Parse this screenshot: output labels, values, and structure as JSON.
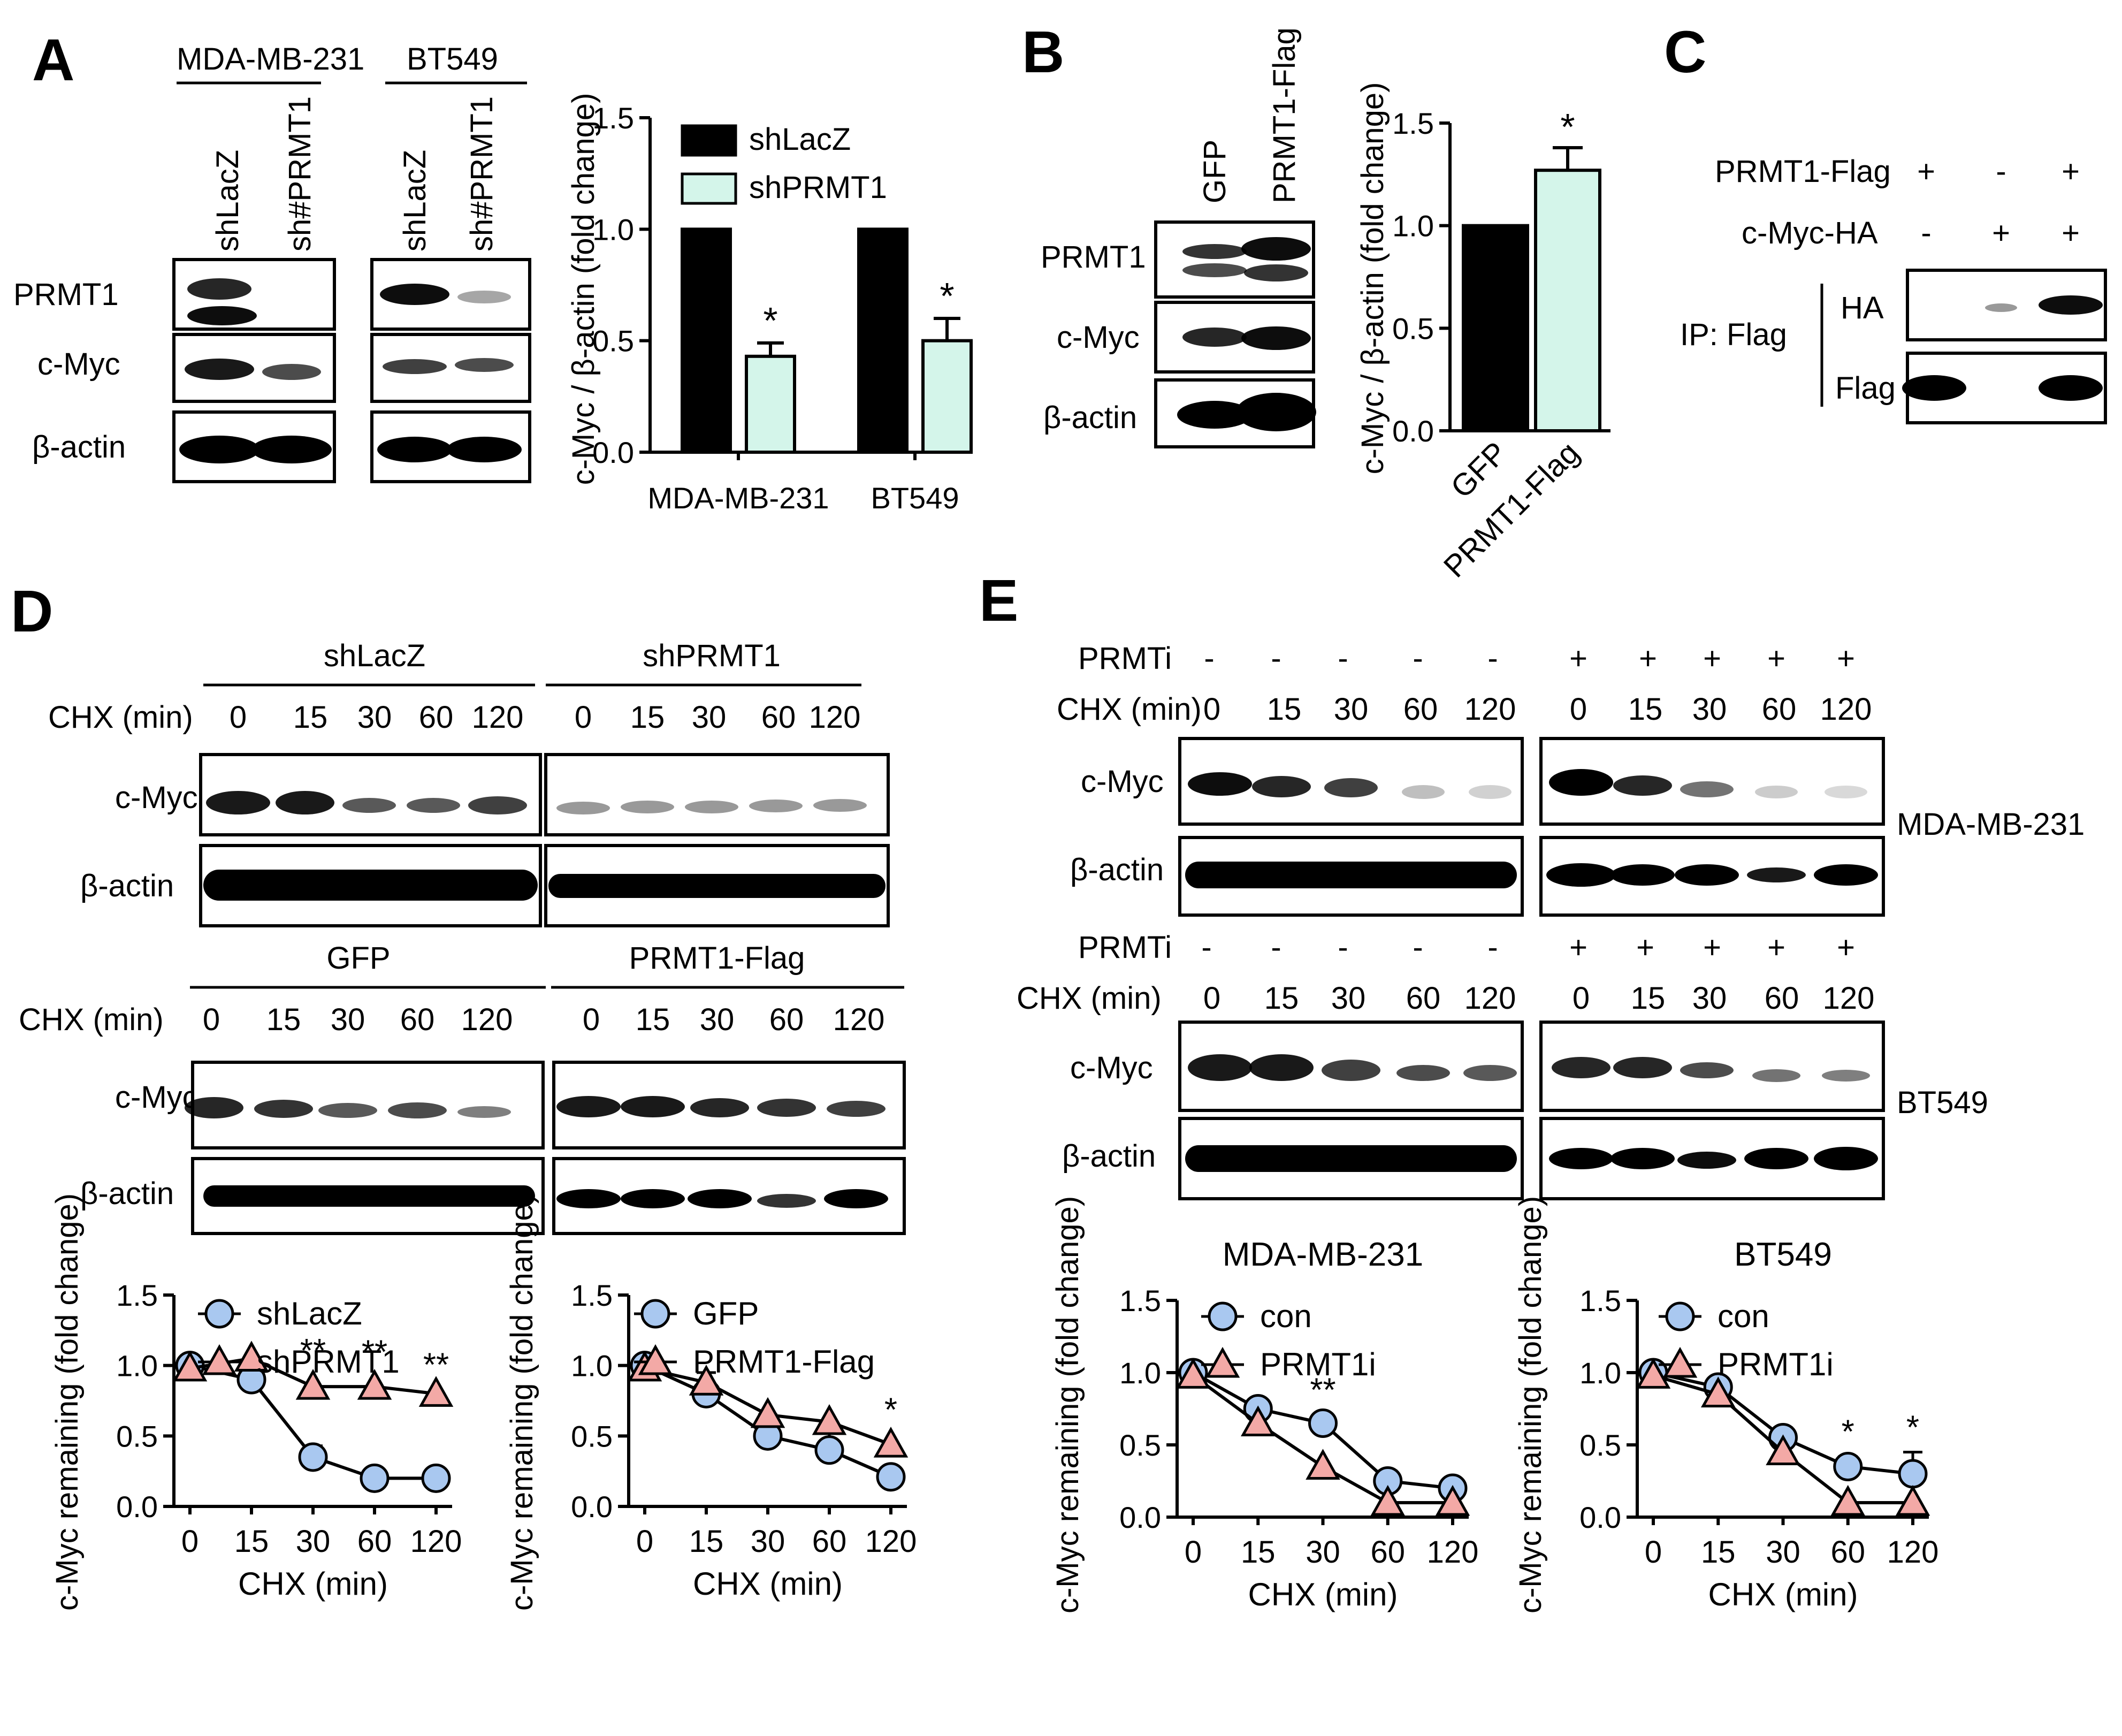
{
  "panels": {
    "A": {
      "letter": "A",
      "cell_lines": [
        "MDA-MB-231",
        "BT549"
      ],
      "lanes": [
        "shLacZ",
        "sh#PRMT1"
      ],
      "blot_rows": [
        "PRMT1",
        "c-Myc",
        "β-actin"
      ]
    },
    "B": {
      "letter": "B",
      "lanes": [
        "GFP",
        "PRMT1-Flag"
      ],
      "blot_rows": [
        "PRMT1",
        "c-Myc",
        "β-actin"
      ]
    },
    "C": {
      "letter": "C",
      "conditions": [
        {
          "label": "PRMT1-Flag",
          "values": [
            "+",
            "-",
            "+"
          ]
        },
        {
          "label": "c-Myc-HA",
          "values": [
            "-",
            "+",
            "+"
          ]
        }
      ],
      "ip_label": "IP: Flag",
      "blot_rows": [
        "HA",
        "Flag"
      ]
    },
    "D": {
      "letter": "D",
      "groups_top": [
        "shLacZ",
        "shPRMT1"
      ],
      "groups_bottom": [
        "GFP",
        "PRMT1-Flag"
      ],
      "chx_label": "CHX (min)",
      "timepoints": [
        "0",
        "15",
        "30",
        "60",
        "120"
      ],
      "blot_rows": [
        "c-Myc",
        "β-actin"
      ]
    },
    "E": {
      "letter": "E",
      "treatment_label": "PRMTi",
      "treatment_values": [
        "-",
        "-",
        "-",
        "-",
        "-",
        "+",
        "+",
        "+",
        "+",
        "+"
      ],
      "chx_label": "CHX (min)",
      "timepoints": [
        "0",
        "15",
        "30",
        "60",
        "120"
      ],
      "blot_rows": [
        "c-Myc",
        "β-actin"
      ],
      "cell_lines": [
        "MDA-MB-231",
        "BT549"
      ]
    }
  },
  "chart_data": [
    {
      "id": "A-bar",
      "type": "bar",
      "categories": [
        "MDA-MB-231",
        "BT549"
      ],
      "series": [
        {
          "name": "shLacZ",
          "values": [
            1.0,
            1.0
          ],
          "errors": [
            0,
            0
          ],
          "color": "#000000"
        },
        {
          "name": "shPRMT1",
          "values": [
            0.43,
            0.5
          ],
          "errors": [
            0.06,
            0.1
          ],
          "color": "#d4f5ea"
        }
      ],
      "significance": [
        "*",
        "*"
      ],
      "ylabel": "c-Myc / β-actin (fold change)",
      "ylim": [
        0,
        1.5
      ],
      "yticks": [
        "0.0",
        "0.5",
        "1.0",
        "1.5"
      ],
      "legend": "top-left"
    },
    {
      "id": "B-bar",
      "type": "bar",
      "categories": [
        "GFP",
        "PRMT1-Flag"
      ],
      "values": [
        1.0,
        1.27
      ],
      "errors": [
        0,
        0.11
      ],
      "colors": [
        "#000000",
        "#d4f5ea"
      ],
      "significance": [
        "",
        "*"
      ],
      "ylabel": "c-Myc / β-actin (fold change)",
      "ylim": [
        0,
        1.5
      ],
      "yticks": [
        "0.0",
        "0.5",
        "1.0",
        "1.5"
      ]
    },
    {
      "id": "D-line-1",
      "type": "line",
      "x": [
        "0",
        "15",
        "30",
        "60",
        "120"
      ],
      "series": [
        {
          "name": "shLacZ",
          "marker": "circle",
          "values": [
            1.0,
            0.9,
            0.35,
            0.2,
            0.2
          ],
          "errors": [
            0.03,
            0.03,
            0.08,
            0.03,
            0.03
          ]
        },
        {
          "name": "shPRMT1",
          "marker": "triangle",
          "values": [
            0.98,
            1.05,
            0.85,
            0.85,
            0.8
          ],
          "errors": [
            0.03,
            0.08,
            0.08,
            0.07,
            0.03
          ]
        }
      ],
      "significance": [
        "",
        "",
        "**",
        "**",
        "**"
      ],
      "xlabel": "CHX  (min)",
      "ylabel": "c-Myc remaining (fold change)",
      "ylim": [
        0,
        1.5
      ],
      "yticks": [
        "0.0",
        "0.5",
        "1.0",
        "1.5"
      ],
      "legend": "top-left"
    },
    {
      "id": "D-line-2",
      "type": "line",
      "x": [
        "0",
        "15",
        "30",
        "60",
        "120"
      ],
      "series": [
        {
          "name": "GFP",
          "marker": "circle",
          "values": [
            1.0,
            0.8,
            0.5,
            0.4,
            0.21
          ],
          "errors": [
            0.03,
            0.15,
            0.15,
            0.15,
            0.03
          ]
        },
        {
          "name": "PRMT1-Flag",
          "marker": "triangle",
          "values": [
            0.98,
            0.88,
            0.65,
            0.6,
            0.44
          ],
          "errors": [
            0.03,
            0.05,
            0.08,
            0.07,
            0.07
          ]
        }
      ],
      "significance": [
        "",
        "",
        "",
        "",
        "*"
      ],
      "xlabel": "CHX  (min)",
      "ylabel": "c-Myc remaining (fold change)",
      "ylim": [
        0,
        1.5
      ],
      "yticks": [
        "0.0",
        "0.5",
        "1.0",
        "1.5"
      ],
      "legend": "top-left"
    },
    {
      "id": "E-line-1",
      "type": "line",
      "title": "MDA-MB-231",
      "x": [
        "0",
        "15",
        "30",
        "60",
        "120"
      ],
      "series": [
        {
          "name": "con",
          "marker": "circle",
          "values": [
            1.0,
            0.75,
            0.65,
            0.25,
            0.2
          ],
          "errors": [
            0.03,
            0.06,
            0.06,
            0.07,
            0.03
          ]
        },
        {
          "name": "PRMT1i",
          "marker": "triangle",
          "values": [
            0.98,
            0.65,
            0.35,
            0.1,
            0.1
          ],
          "errors": [
            0.03,
            0.08,
            0.08,
            0.05,
            0.05
          ]
        }
      ],
      "significance": [
        "",
        "",
        "**",
        "",
        ""
      ],
      "xlabel": "CHX  (min)",
      "ylabel": "c-Myc remaining (fold change)",
      "ylim": [
        0,
        1.5
      ],
      "yticks": [
        "0.0",
        "0.5",
        "1.0",
        "1.5"
      ],
      "legend": "top-left"
    },
    {
      "id": "E-line-2",
      "type": "line",
      "title": "BT549",
      "x": [
        "0",
        "15",
        "30",
        "60",
        "120"
      ],
      "series": [
        {
          "name": "con",
          "marker": "circle",
          "values": [
            1.0,
            0.9,
            0.55,
            0.35,
            0.3
          ],
          "errors": [
            0.03,
            0.03,
            0.07,
            0.07,
            0.15
          ]
        },
        {
          "name": "PRMT1i",
          "marker": "triangle",
          "values": [
            0.98,
            0.85,
            0.45,
            0.1,
            0.1
          ],
          "errors": [
            0.03,
            0.03,
            0.05,
            0.05,
            0.05
          ]
        }
      ],
      "significance": [
        "",
        "",
        "",
        "*",
        "*"
      ],
      "xlabel": "CHX  (min)",
      "ylabel": "c-Myc remaining (fold change)",
      "ylim": [
        0,
        1.5
      ],
      "yticks": [
        "0.0",
        "0.5",
        "1.0",
        "1.5"
      ],
      "legend": "top-left"
    }
  ]
}
